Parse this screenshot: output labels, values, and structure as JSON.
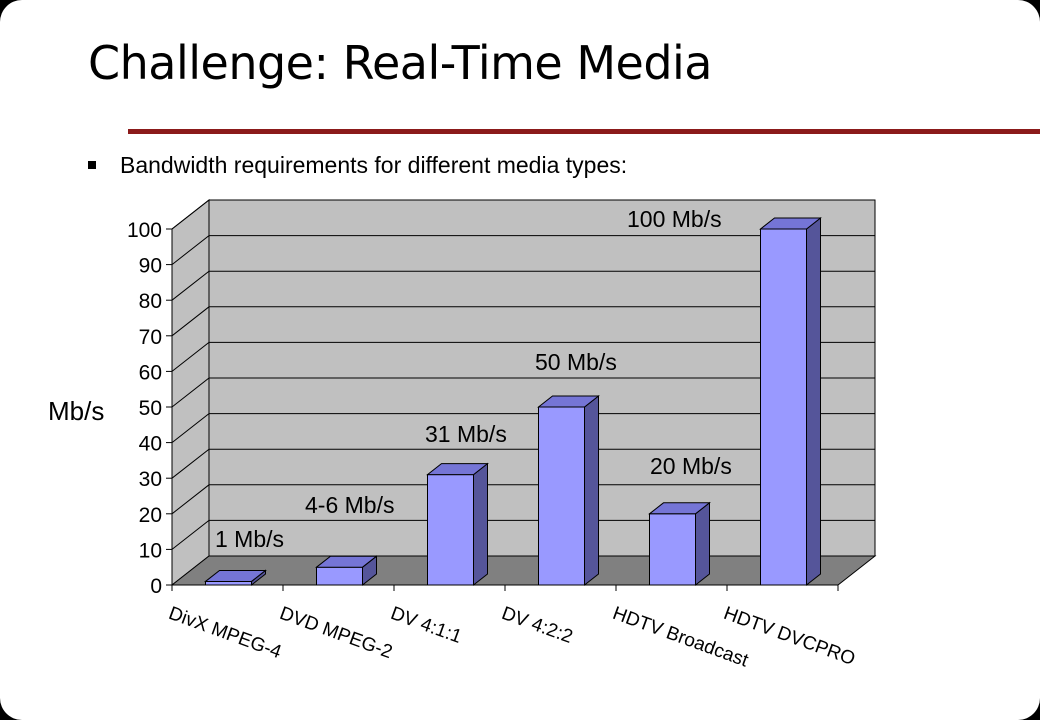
{
  "slide": {
    "title": "Challenge: Real-Time Media",
    "bullet": "Bandwidth requirements for different media types:"
  },
  "colors": {
    "title_rule": "#8b1a1a",
    "plot_wall": "#c0c0c0",
    "plot_floor": "#808080",
    "bar_front": "#9999ff",
    "bar_top": "#7575d6",
    "bar_side": "#55559a"
  },
  "chart_data": {
    "type": "bar",
    "title": "",
    "xlabel": "",
    "ylabel": "Mb/s",
    "ylim": [
      0,
      100
    ],
    "yticks": [
      0,
      10,
      20,
      30,
      40,
      50,
      60,
      70,
      80,
      90,
      100
    ],
    "grid": true,
    "style": "3d",
    "categories": [
      "DivX MPEG-4",
      "DVD MPEG-2",
      "DV 4:1:1",
      "DV 4:2:2",
      "HDTV Broadcast",
      "HDTV DVCPRO"
    ],
    "values": [
      1,
      5,
      31,
      50,
      20,
      100
    ],
    "data_labels": [
      "1 Mb/s",
      "4-6 Mb/s",
      "31 Mb/s",
      "50 Mb/s",
      "20 Mb/s",
      "100 Mb/s"
    ]
  }
}
